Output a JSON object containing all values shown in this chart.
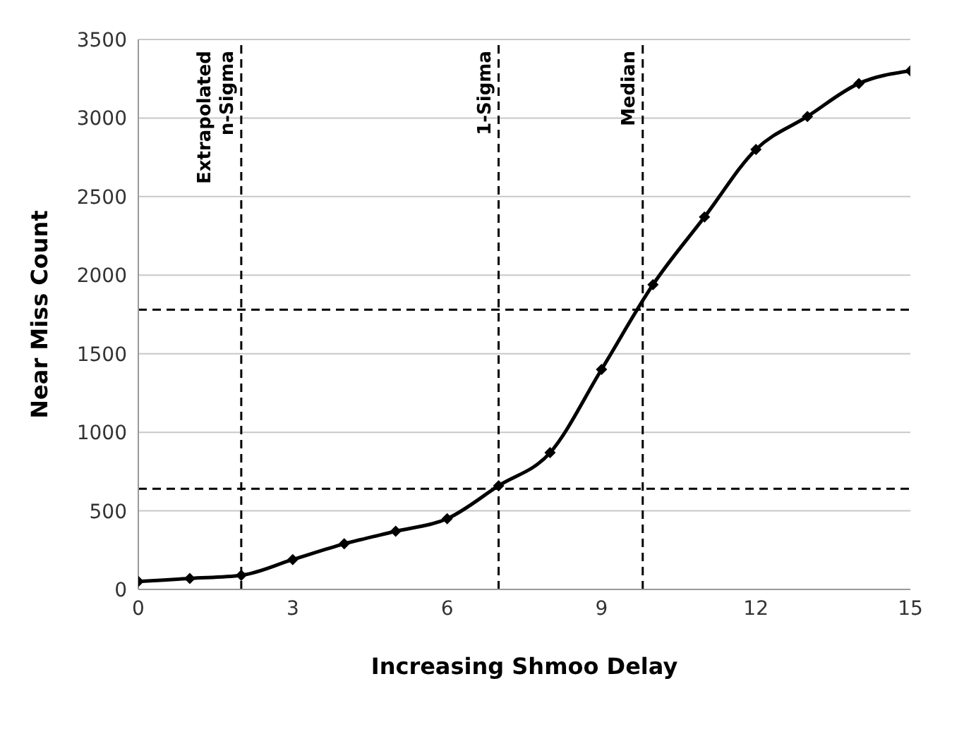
{
  "chart_data": {
    "type": "line",
    "xlabel": "Increasing Shmoo Delay",
    "ylabel": "Near Miss Count",
    "x": [
      0,
      1,
      2,
      3,
      4,
      5,
      6,
      7,
      8,
      9,
      10,
      11,
      12,
      13,
      14,
      15
    ],
    "series": [
      {
        "color": "#000000",
        "values": [
          50,
          70,
          90,
          190,
          290,
          370,
          450,
          660,
          870,
          1400,
          1940,
          2370,
          2800,
          3010,
          3220,
          3300
        ]
      }
    ],
    "xlim": [
      0,
      15
    ],
    "xticks": [
      0,
      3,
      6,
      9,
      12,
      15
    ],
    "ylim": [
      0,
      3500
    ],
    "yticks": [
      0,
      500,
      1000,
      1500,
      2000,
      2500,
      3000,
      3500
    ],
    "grid": "y",
    "legend": false,
    "marker": "diamond",
    "line_style": "solid",
    "ref_lines": [
      {
        "axis": "x",
        "value": 2,
        "label": "Extrapolated n-Sigma",
        "line_style": "dashed",
        "color": "#000000"
      },
      {
        "axis": "x",
        "value": 7,
        "label": "1-Sigma",
        "line_style": "dashed",
        "color": "#000000"
      },
      {
        "axis": "x",
        "value": 9.8,
        "label": "Median",
        "line_style": "dashed",
        "color": "#000000"
      },
      {
        "axis": "y",
        "value": 1780,
        "line_style": "dashed",
        "color": "#000000"
      },
      {
        "axis": "y",
        "value": 640,
        "line_style": "dashed",
        "color": "#000000"
      }
    ]
  }
}
